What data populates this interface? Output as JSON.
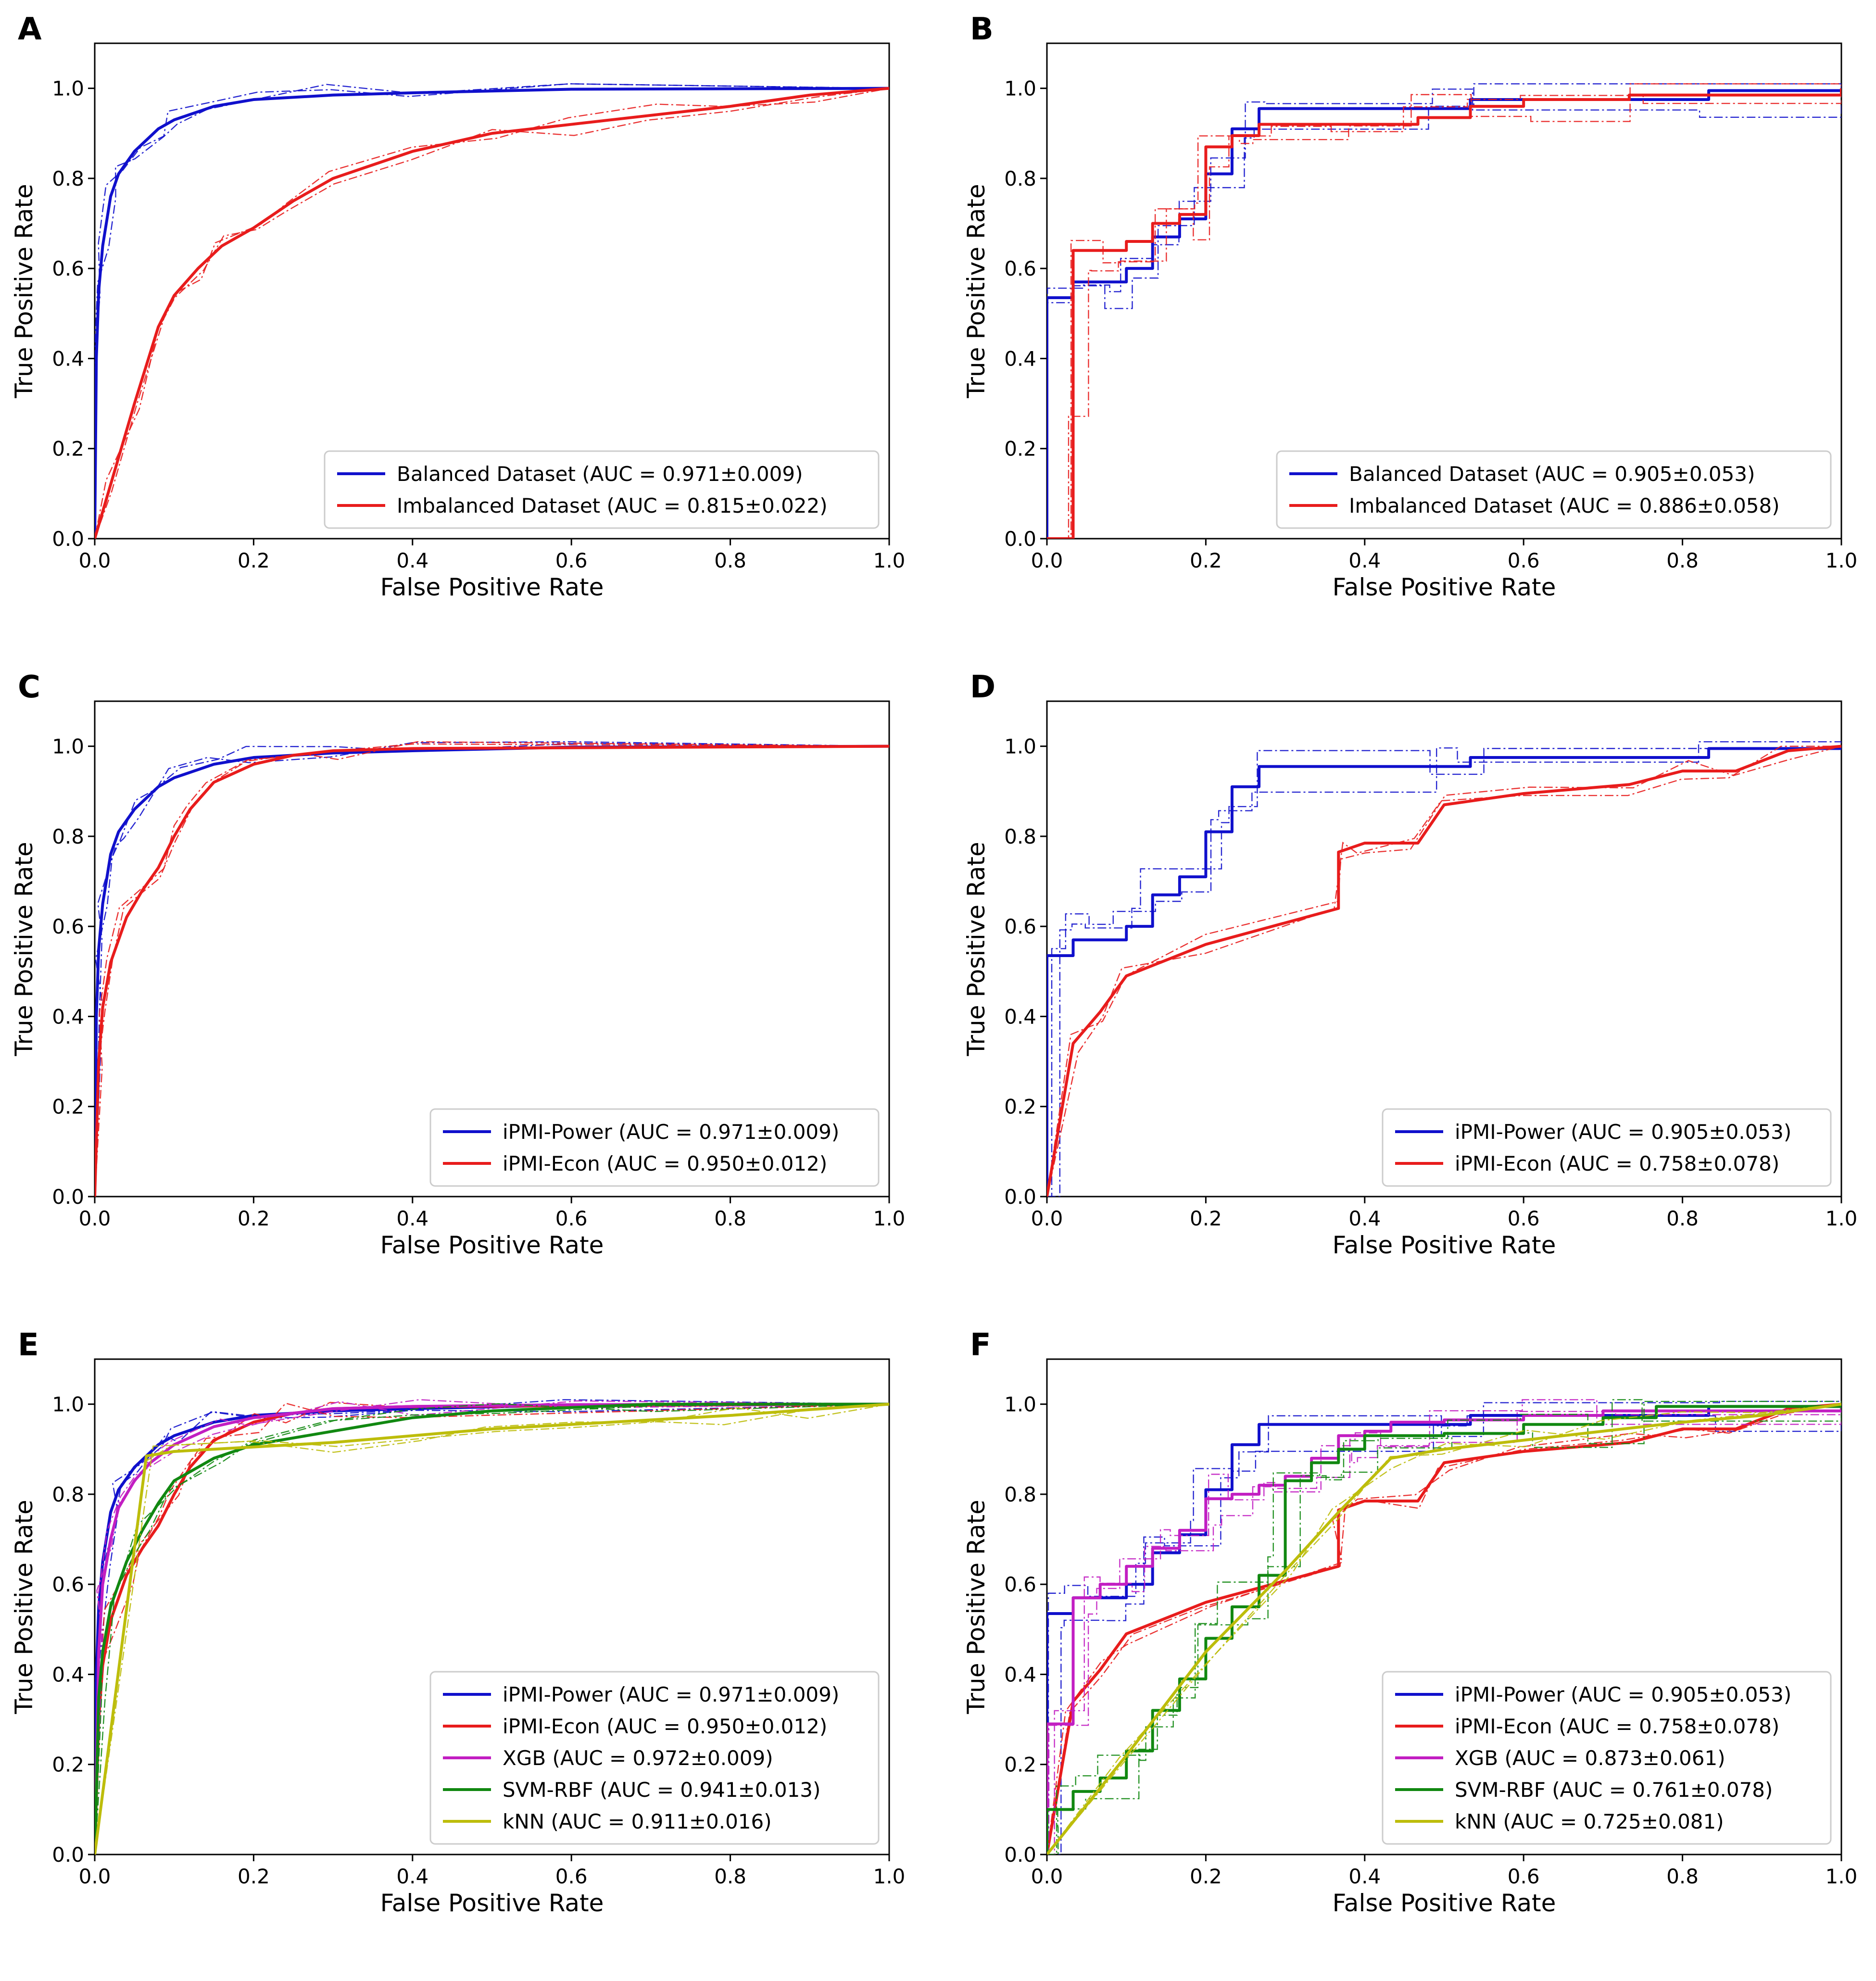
{
  "colors": {
    "blue": "#1010cc",
    "red": "#e81c1c",
    "magenta": "#c21ec2",
    "green": "#118811",
    "olive": "#bdbd0b"
  },
  "chart_data": [
    {
      "panel": "A",
      "type": "line",
      "xlabel": "False Positive Rate",
      "ylabel": "True Positive Rate",
      "xlim": [
        0.0,
        1.0
      ],
      "ylim": [
        0.0,
        1.1
      ],
      "xticks": [
        "0.0",
        "0.2",
        "0.4",
        "0.6",
        "0.8",
        "1.0"
      ],
      "yticks": [
        "0.0",
        "0.2",
        "0.4",
        "0.6",
        "0.8",
        "1.0"
      ],
      "legend_position": "lower right",
      "series": [
        {
          "name": "Balanced Dataset (AUC = 0.971±0.009)",
          "color": "blue",
          "step": false,
          "x": [
            0,
            0.002,
            0.005,
            0.01,
            0.02,
            0.03,
            0.05,
            0.08,
            0.1,
            0.15,
            0.2,
            0.3,
            0.4,
            0.6,
            1.0
          ],
          "y": [
            0,
            0.4,
            0.55,
            0.65,
            0.76,
            0.81,
            0.86,
            0.91,
            0.93,
            0.96,
            0.975,
            0.985,
            0.99,
            0.998,
            1.0
          ]
        },
        {
          "name": "Imbalanced Dataset (AUC = 0.815±0.022)",
          "color": "red",
          "step": false,
          "x": [
            0,
            0.02,
            0.05,
            0.08,
            0.1,
            0.13,
            0.16,
            0.2,
            0.25,
            0.3,
            0.4,
            0.5,
            0.6,
            0.7,
            0.8,
            0.9,
            1.0
          ],
          "y": [
            0,
            0.12,
            0.3,
            0.47,
            0.54,
            0.6,
            0.65,
            0.69,
            0.75,
            0.8,
            0.86,
            0.9,
            0.92,
            0.94,
            0.96,
            0.985,
            1.0
          ]
        }
      ]
    },
    {
      "panel": "B",
      "type": "line",
      "xlabel": "False Positive Rate",
      "ylabel": "True Positive Rate",
      "xlim": [
        0.0,
        1.0
      ],
      "ylim": [
        0.0,
        1.1
      ],
      "xticks": [
        "0.0",
        "0.2",
        "0.4",
        "0.6",
        "0.8",
        "1.0"
      ],
      "yticks": [
        "0.0",
        "0.2",
        "0.4",
        "0.6",
        "0.8",
        "1.0"
      ],
      "legend_position": "lower right",
      "series": [
        {
          "name": "Balanced Dataset (AUC = 0.905±0.053)",
          "color": "blue",
          "step": true,
          "x": [
            0,
            0,
            0.033,
            0.067,
            0.1,
            0.133,
            0.167,
            0.2,
            0.233,
            0.267,
            0.5,
            0.533,
            0.833,
            1.0
          ],
          "y": [
            0,
            0.535,
            0.57,
            0.57,
            0.6,
            0.67,
            0.71,
            0.81,
            0.91,
            0.955,
            0.955,
            0.975,
            0.995,
            1.0
          ]
        },
        {
          "name": "Imbalanced Dataset (AUC = 0.886±0.058)",
          "color": "red",
          "step": true,
          "x": [
            0,
            0.033,
            0.033,
            0.067,
            0.1,
            0.133,
            0.167,
            0.2,
            0.233,
            0.267,
            0.367,
            0.467,
            0.533,
            0.6,
            0.733,
            1.0
          ],
          "y": [
            0,
            0.32,
            0.64,
            0.64,
            0.66,
            0.7,
            0.72,
            0.87,
            0.895,
            0.92,
            0.92,
            0.935,
            0.96,
            0.975,
            0.985,
            1.0
          ]
        }
      ]
    },
    {
      "panel": "C",
      "type": "line",
      "xlabel": "False Positive Rate",
      "ylabel": "True Positive Rate",
      "xlim": [
        0.0,
        1.0
      ],
      "ylim": [
        0.0,
        1.1
      ],
      "xticks": [
        "0.0",
        "0.2",
        "0.4",
        "0.6",
        "0.8",
        "1.0"
      ],
      "yticks": [
        "0.0",
        "0.2",
        "0.4",
        "0.6",
        "0.8",
        "1.0"
      ],
      "legend_position": "lower right",
      "series": [
        {
          "name": "iPMI-Power (AUC = 0.971±0.009)",
          "color": "blue",
          "step": false,
          "x": [
            0,
            0.002,
            0.005,
            0.01,
            0.02,
            0.03,
            0.05,
            0.08,
            0.1,
            0.15,
            0.2,
            0.3,
            0.4,
            0.6,
            1.0
          ],
          "y": [
            0,
            0.4,
            0.55,
            0.65,
            0.76,
            0.81,
            0.86,
            0.91,
            0.93,
            0.96,
            0.975,
            0.985,
            0.99,
            0.998,
            1.0
          ]
        },
        {
          "name": "iPMI-Econ (AUC = 0.950±0.012)",
          "color": "red",
          "step": false,
          "x": [
            0,
            0.005,
            0.01,
            0.02,
            0.04,
            0.06,
            0.08,
            0.1,
            0.12,
            0.15,
            0.2,
            0.25,
            0.3,
            0.4,
            1.0
          ],
          "y": [
            0,
            0.3,
            0.42,
            0.52,
            0.62,
            0.68,
            0.73,
            0.8,
            0.86,
            0.92,
            0.96,
            0.98,
            0.99,
            0.995,
            1.0
          ]
        }
      ]
    },
    {
      "panel": "D",
      "type": "line",
      "xlabel": "False Positive Rate",
      "ylabel": "True Positive Rate",
      "xlim": [
        0.0,
        1.0
      ],
      "ylim": [
        0.0,
        1.1
      ],
      "xticks": [
        "0.0",
        "0.2",
        "0.4",
        "0.6",
        "0.8",
        "1.0"
      ],
      "yticks": [
        "0.0",
        "0.2",
        "0.4",
        "0.6",
        "0.8",
        "1.0"
      ],
      "legend_position": "lower right",
      "series": [
        {
          "name": "iPMI-Power (AUC = 0.905±0.053)",
          "color": "blue",
          "step": true,
          "x": [
            0,
            0,
            0.033,
            0.067,
            0.1,
            0.133,
            0.167,
            0.2,
            0.233,
            0.267,
            0.5,
            0.533,
            0.833,
            1.0
          ],
          "y": [
            0,
            0.535,
            0.57,
            0.57,
            0.6,
            0.67,
            0.71,
            0.81,
            0.91,
            0.955,
            0.955,
            0.975,
            0.995,
            1.0
          ]
        },
        {
          "name": "iPMI-Econ (AUC = 0.758±0.078)",
          "color": "red",
          "step": false,
          "x": [
            0,
            0.033,
            0.067,
            0.1,
            0.2,
            0.367,
            0.367,
            0.4,
            0.467,
            0.5,
            0.6,
            0.733,
            0.8,
            0.867,
            0.933,
            1.0
          ],
          "y": [
            0,
            0.34,
            0.41,
            0.49,
            0.56,
            0.64,
            0.765,
            0.785,
            0.785,
            0.87,
            0.895,
            0.915,
            0.945,
            0.945,
            0.99,
            1.0
          ]
        }
      ]
    },
    {
      "panel": "E",
      "type": "line",
      "xlabel": "False Positive Rate",
      "ylabel": "True Positive Rate",
      "xlim": [
        0.0,
        1.0
      ],
      "ylim": [
        0.0,
        1.1
      ],
      "xticks": [
        "0.0",
        "0.2",
        "0.4",
        "0.6",
        "0.8",
        "1.0"
      ],
      "yticks": [
        "0.0",
        "0.2",
        "0.4",
        "0.6",
        "0.8",
        "1.0"
      ],
      "legend_position": "lower right",
      "series": [
        {
          "name": "iPMI-Power (AUC = 0.971±0.009)",
          "color": "blue",
          "step": false,
          "x": [
            0,
            0.002,
            0.005,
            0.01,
            0.02,
            0.03,
            0.05,
            0.08,
            0.1,
            0.15,
            0.2,
            0.3,
            0.4,
            0.6,
            1.0
          ],
          "y": [
            0,
            0.4,
            0.55,
            0.65,
            0.76,
            0.81,
            0.86,
            0.91,
            0.93,
            0.96,
            0.975,
            0.985,
            0.99,
            0.998,
            1.0
          ]
        },
        {
          "name": "iPMI-Econ (AUC = 0.950±0.012)",
          "color": "red",
          "step": false,
          "x": [
            0,
            0.005,
            0.01,
            0.02,
            0.04,
            0.06,
            0.08,
            0.1,
            0.12,
            0.15,
            0.2,
            0.25,
            0.3,
            0.4,
            1.0
          ],
          "y": [
            0,
            0.3,
            0.42,
            0.52,
            0.62,
            0.68,
            0.73,
            0.8,
            0.86,
            0.92,
            0.96,
            0.98,
            0.99,
            0.995,
            1.0
          ]
        },
        {
          "name": "XGB (AUC = 0.972±0.009)",
          "color": "magenta",
          "step": false,
          "x": [
            0,
            0.005,
            0.01,
            0.02,
            0.03,
            0.05,
            0.07,
            0.1,
            0.15,
            0.2,
            0.3,
            0.4,
            0.6,
            1.0
          ],
          "y": [
            0,
            0.45,
            0.6,
            0.7,
            0.77,
            0.83,
            0.87,
            0.91,
            0.95,
            0.97,
            0.99,
            0.995,
            0.999,
            1.0
          ]
        },
        {
          "name": "SVM-RBF (AUC = 0.941±0.013)",
          "color": "green",
          "step": false,
          "x": [
            0,
            0.005,
            0.01,
            0.02,
            0.04,
            0.06,
            0.08,
            0.1,
            0.15,
            0.2,
            0.3,
            0.4,
            0.5,
            0.7,
            1.0
          ],
          "y": [
            0,
            0.35,
            0.45,
            0.55,
            0.65,
            0.72,
            0.78,
            0.83,
            0.88,
            0.91,
            0.94,
            0.97,
            0.985,
            1.0,
            1.0
          ]
        },
        {
          "name": "kNN (AUC = 0.911±0.016)",
          "color": "olive",
          "step": false,
          "x": [
            0,
            0.065,
            0.1,
            0.2,
            0.3,
            0.4,
            0.5,
            0.6,
            0.7,
            0.8,
            0.9,
            1.0
          ],
          "y": [
            0,
            0.885,
            0.895,
            0.905,
            0.915,
            0.93,
            0.945,
            0.955,
            0.965,
            0.975,
            0.988,
            1.0
          ]
        }
      ]
    },
    {
      "panel": "F",
      "type": "line",
      "xlabel": "False Positive Rate",
      "ylabel": "True Positive Rate",
      "xlim": [
        0.0,
        1.0
      ],
      "ylim": [
        0.0,
        1.1
      ],
      "xticks": [
        "0.0",
        "0.2",
        "0.4",
        "0.6",
        "0.8",
        "1.0"
      ],
      "yticks": [
        "0.0",
        "0.2",
        "0.4",
        "0.6",
        "0.8",
        "1.0"
      ],
      "legend_position": "lower right",
      "series": [
        {
          "name": "iPMI-Power (AUC = 0.905±0.053)",
          "color": "blue",
          "step": true,
          "x": [
            0,
            0,
            0.033,
            0.067,
            0.1,
            0.133,
            0.167,
            0.2,
            0.233,
            0.267,
            0.5,
            0.533,
            0.833,
            1.0
          ],
          "y": [
            0,
            0.535,
            0.57,
            0.57,
            0.6,
            0.67,
            0.71,
            0.81,
            0.91,
            0.955,
            0.955,
            0.975,
            0.995,
            1.0
          ]
        },
        {
          "name": "iPMI-Econ (AUC = 0.758±0.078)",
          "color": "red",
          "step": false,
          "x": [
            0,
            0.033,
            0.067,
            0.1,
            0.2,
            0.367,
            0.367,
            0.4,
            0.467,
            0.5,
            0.6,
            0.733,
            0.8,
            0.867,
            0.933,
            1.0
          ],
          "y": [
            0,
            0.34,
            0.41,
            0.49,
            0.56,
            0.64,
            0.765,
            0.785,
            0.785,
            0.87,
            0.895,
            0.915,
            0.945,
            0.945,
            0.99,
            1.0
          ]
        },
        {
          "name": "XGB (AUC = 0.873±0.061)",
          "color": "magenta",
          "step": true,
          "x": [
            0,
            0,
            0.033,
            0.067,
            0.1,
            0.133,
            0.167,
            0.2,
            0.233,
            0.267,
            0.3,
            0.333,
            0.367,
            0.4,
            0.433,
            0.5,
            0.6,
            0.7,
            1.0
          ],
          "y": [
            0,
            0.29,
            0.57,
            0.6,
            0.64,
            0.68,
            0.72,
            0.79,
            0.8,
            0.82,
            0.84,
            0.88,
            0.93,
            0.94,
            0.96,
            0.965,
            0.975,
            0.985,
            1.0
          ]
        },
        {
          "name": "SVM-RBF (AUC = 0.761±0.078)",
          "color": "green",
          "step": true,
          "x": [
            0,
            0,
            0.033,
            0.067,
            0.1,
            0.133,
            0.167,
            0.2,
            0.233,
            0.267,
            0.3,
            0.333,
            0.367,
            0.4,
            0.5,
            0.6,
            0.7,
            0.767,
            1.0
          ],
          "y": [
            0,
            0.1,
            0.14,
            0.17,
            0.23,
            0.32,
            0.39,
            0.48,
            0.55,
            0.62,
            0.83,
            0.87,
            0.9,
            0.93,
            0.935,
            0.955,
            0.97,
            0.995,
            1.0
          ]
        },
        {
          "name": "kNN (AUC = 0.725±0.081)",
          "color": "olive",
          "step": false,
          "x": [
            0,
            0.1,
            0.2,
            0.3,
            0.367,
            0.433,
            0.5,
            0.6,
            0.7,
            0.8,
            0.9,
            1.0
          ],
          "y": [
            0,
            0.22,
            0.45,
            0.63,
            0.76,
            0.88,
            0.9,
            0.92,
            0.94,
            0.96,
            0.975,
            1.0
          ]
        }
      ]
    }
  ]
}
